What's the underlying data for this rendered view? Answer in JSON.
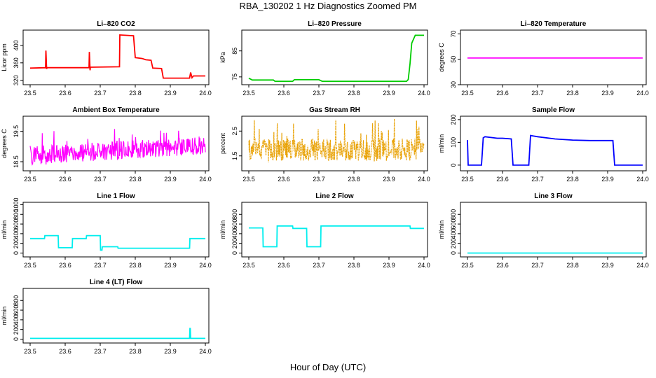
{
  "figure": {
    "title": "RBA_130202  1 Hz Diagnostics Zoomed PM",
    "xlabel": "Hour of Day (UTC)"
  },
  "chart_data": [
    {
      "id": "co2",
      "type": "line",
      "title": "Li–820 CO2",
      "ylabel": "Licor ppm",
      "color": "#ff0000",
      "xlim": [
        23.48,
        24.01
      ],
      "ylim": [
        310,
        435
      ],
      "xticks": [
        23.5,
        23.6,
        23.7,
        23.8,
        23.9,
        24.0
      ],
      "yticks": [
        320,
        360,
        400
      ],
      "series": [
        {
          "x": [
            23.5,
            23.544,
            23.545,
            23.547,
            23.548,
            23.668,
            23.669,
            23.671,
            23.672,
            23.755,
            23.756,
            23.795,
            23.8,
            23.82,
            23.83,
            23.845,
            23.85,
            23.875,
            23.88,
            23.955,
            23.958,
            23.962,
            23.966,
            24.0
          ],
          "y": [
            348,
            349,
            388,
            346,
            349,
            349,
            385,
            343,
            350,
            351,
            424,
            422,
            372,
            370,
            367,
            366,
            348,
            347,
            325,
            325,
            338,
            326,
            330,
            330
          ]
        }
      ]
    },
    {
      "id": "pressure",
      "type": "line",
      "title": "Li–820 Pressure",
      "ylabel": "kPa",
      "color": "#00cc00",
      "xlim": [
        23.48,
        24.01
      ],
      "ylim": [
        72.0,
        93.0
      ],
      "xticks": [
        23.5,
        23.6,
        23.7,
        23.8,
        23.9,
        24.0
      ],
      "yticks": [
        75,
        85
      ],
      "series": [
        {
          "x": [
            23.5,
            23.51,
            23.57,
            23.575,
            23.625,
            23.63,
            23.7,
            23.71,
            23.95,
            23.955,
            23.96,
            23.965,
            23.975,
            24.0
          ],
          "y": [
            74.5,
            73.8,
            73.8,
            73.3,
            73.3,
            73.9,
            73.9,
            73.3,
            73.3,
            74.0,
            80.0,
            88.0,
            91.0,
            91.0
          ]
        }
      ]
    },
    {
      "id": "licor_temp",
      "type": "line",
      "title": "Li–820 Temperature",
      "ylabel": "degrees C",
      "color": "#ff00ff",
      "xlim": [
        23.48,
        24.01
      ],
      "ylim": [
        30,
        73
      ],
      "xticks": [
        23.5,
        23.6,
        23.7,
        23.8,
        23.9,
        24.0
      ],
      "yticks": [
        30,
        50,
        70
      ],
      "series": [
        {
          "x": [
            23.5,
            24.0
          ],
          "y": [
            51.0,
            51.0
          ]
        }
      ]
    },
    {
      "id": "box_temp",
      "type": "line",
      "title": "Ambient Box Temperature",
      "ylabel": "degrees C",
      "color": "#ff00ff",
      "xlim": [
        23.48,
        24.01
      ],
      "ylim": [
        18.2,
        20.0
      ],
      "xticks": [
        23.5,
        23.6,
        23.7,
        23.8,
        23.9,
        24.0
      ],
      "yticks": [
        18.5,
        19.5
      ],
      "noise": {
        "x_start": 23.5,
        "x_end": 24.0,
        "points": 420,
        "base_start": 18.7,
        "base_end": 19.05,
        "amplitude": 0.3,
        "spike": 0.55
      }
    },
    {
      "id": "rh",
      "type": "line",
      "title": "Gas Stream RH",
      "ylabel": "percent",
      "color": "#e8a000",
      "xlim": [
        23.48,
        24.01
      ],
      "ylim": [
        0.9,
        3.1
      ],
      "xticks": [
        23.5,
        23.6,
        23.7,
        23.8,
        23.9,
        24.0
      ],
      "yticks": [
        1.5,
        2.5
      ],
      "noise": {
        "x_start": 23.5,
        "x_end": 24.0,
        "points": 420,
        "base_start": 1.75,
        "base_end": 1.75,
        "amplitude": 0.45,
        "spike": 0.9
      }
    },
    {
      "id": "sample_flow",
      "type": "line",
      "title": "Sample Flow",
      "ylabel": "ml/min",
      "color": "#0000ff",
      "xlim": [
        23.48,
        24.01
      ],
      "ylim": [
        -25,
        215
      ],
      "xticks": [
        23.5,
        23.6,
        23.7,
        23.8,
        23.9,
        24.0
      ],
      "yticks": [
        0,
        100,
        200
      ],
      "series": [
        {
          "x": [
            23.5,
            23.502,
            23.505,
            23.54,
            23.545,
            23.55,
            23.585,
            23.6,
            23.625,
            23.63,
            23.67,
            23.675,
            23.68,
            23.7,
            23.75,
            23.8,
            23.85,
            23.9,
            23.915,
            23.92,
            24.0
          ],
          "y": [
            110,
            0,
            0,
            0,
            120,
            125,
            118,
            118,
            115,
            0,
            0,
            0,
            130,
            125,
            115,
            110,
            108,
            108,
            108,
            0,
            0
          ]
        }
      ]
    },
    {
      "id": "line1",
      "type": "line",
      "title": "Line 1 Flow",
      "ylabel": "ml/min",
      "color": "#00eeee",
      "xlim": [
        23.48,
        24.01
      ],
      "ylim": [
        -80,
        1050
      ],
      "xticks": [
        23.5,
        23.6,
        23.7,
        23.8,
        23.9,
        24.0
      ],
      "yticks": [
        0,
        200,
        400,
        600,
        800,
        1000
      ],
      "series": [
        {
          "x": [
            23.5,
            23.541,
            23.542,
            23.58,
            23.581,
            23.62,
            23.621,
            23.66,
            23.661,
            23.7,
            23.701,
            23.705,
            23.706,
            23.75,
            23.751,
            23.955,
            23.956,
            24.0
          ],
          "y": [
            300,
            300,
            360,
            360,
            110,
            110,
            300,
            300,
            360,
            360,
            60,
            60,
            130,
            130,
            100,
            100,
            300,
            300
          ]
        }
      ]
    },
    {
      "id": "line2",
      "type": "line",
      "title": "Line 2 Flow",
      "ylabel": "ml/min",
      "color": "#00eeee",
      "xlim": [
        23.48,
        24.01
      ],
      "ylim": [
        -80,
        1050
      ],
      "xticks": [
        23.5,
        23.6,
        23.7,
        23.8,
        23.9,
        24.0
      ],
      "yticks": [
        0,
        200,
        400,
        600,
        800
      ],
      "series": [
        {
          "x": [
            23.5,
            23.54,
            23.541,
            23.58,
            23.581,
            23.625,
            23.626,
            23.665,
            23.666,
            23.705,
            23.706,
            23.96,
            23.961,
            24.0
          ],
          "y": [
            520,
            520,
            130,
            130,
            560,
            560,
            510,
            510,
            130,
            130,
            560,
            560,
            510,
            510
          ]
        }
      ]
    },
    {
      "id": "line3",
      "type": "line",
      "title": "Line 3 Flow",
      "ylabel": "ml/min",
      "color": "#00eeee",
      "xlim": [
        23.48,
        24.01
      ],
      "ylim": [
        -80,
        1050
      ],
      "xticks": [
        23.5,
        23.6,
        23.7,
        23.8,
        23.9,
        24.0
      ],
      "yticks": [
        0,
        200,
        400,
        600,
        800
      ],
      "series": [
        {
          "x": [
            23.5,
            24.0
          ],
          "y": [
            0,
            0
          ]
        }
      ]
    },
    {
      "id": "line4",
      "type": "line",
      "title": "Line 4 (LT) Flow",
      "ylabel": "ml/min",
      "color": "#00eeee",
      "xlim": [
        23.48,
        24.01
      ],
      "ylim": [
        -80,
        1050
      ],
      "xticks": [
        23.5,
        23.6,
        23.7,
        23.8,
        23.9,
        24.0
      ],
      "yticks": [
        0,
        200,
        400,
        600,
        800
      ],
      "series": [
        {
          "x": [
            23.5,
            23.955,
            23.956,
            23.957,
            23.958,
            24.0
          ],
          "y": [
            15,
            15,
            220,
            220,
            15,
            15
          ]
        }
      ]
    }
  ]
}
